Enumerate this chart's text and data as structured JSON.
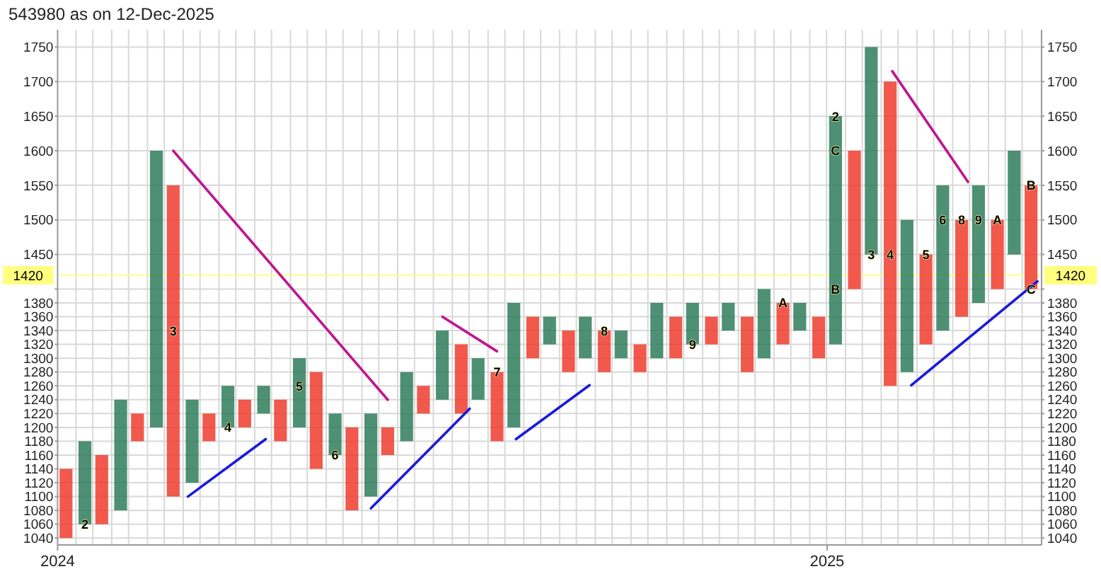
{
  "chart_data": {
    "type": "bar",
    "title": "543980 as on 12-Dec-2025",
    "xlim": [
      "2024-01-01",
      "2025-04-13"
    ],
    "xticks": [
      "2024",
      "2025"
    ],
    "ylim": [
      1030,
      1775
    ],
    "yticks": [
      1040,
      1060,
      1080,
      1100,
      1120,
      1140,
      1160,
      1180,
      1200,
      1220,
      1240,
      1260,
      1280,
      1300,
      1320,
      1340,
      1360,
      1380,
      {
        "value": 1400,
        "label": null
      },
      1450,
      1500,
      1550,
      1600,
      1650,
      1700,
      1750
    ],
    "y2lim": [
      1030,
      1775
    ],
    "y2ticks": [
      1040,
      1060,
      1080,
      1100,
      1120,
      1140,
      1160,
      1180,
      1200,
      1220,
      1240,
      1260,
      1280,
      1300,
      1320,
      1340,
      1360,
      1380,
      {
        "value": 1400,
        "label": null
      },
      1450,
      1500,
      1550,
      1600,
      1650,
      1700,
      1750
    ],
    "grid": true,
    "ref_lines": [
      {
        "axis": "y",
        "value": 1420,
        "label": "1420",
        "color": "#ffff80"
      }
    ],
    "series": [
      {
        "x": [
          "2024-01-05",
          "2024-01-14",
          "2024-01-22",
          "2024-01-31",
          "2024-02-08",
          "2024-02-17",
          "2024-02-25",
          "2024-03-05",
          "2024-03-13",
          "2024-03-22",
          "2024-03-30",
          "2024-04-08",
          "2024-04-16",
          "2024-04-25",
          "2024-05-03",
          "2024-05-12",
          "2024-05-20",
          "2024-05-29",
          "2024-06-06",
          "2024-06-15",
          "2024-06-23",
          "2024-07-02",
          "2024-07-11",
          "2024-07-19",
          "2024-07-28",
          "2024-08-05",
          "2024-08-14",
          "2024-08-22",
          "2024-08-31",
          "2024-09-08",
          "2024-09-17",
          "2024-09-25",
          "2024-10-04",
          "2024-10-12",
          "2024-10-21",
          "2024-10-29",
          "2024-11-07",
          "2024-11-15",
          "2024-11-24",
          "2024-12-02",
          "2024-12-11",
          "2024-12-19",
          "2024-12-28",
          "2025-01-05",
          "2025-01-14",
          "2025-01-22",
          "2025-01-31",
          "2025-02-08",
          "2025-02-17",
          "2025-02-25",
          "2025-03-06",
          "2025-03-14",
          "2025-03-23",
          "2025-03-31",
          "2025-04-08"
        ],
        "base": [
          1040,
          1060,
          1060,
          1080,
          1180,
          1200,
          1100,
          1120,
          1180,
          1200,
          1200,
          1220,
          1180,
          1200,
          1140,
          1160,
          1080,
          1100,
          1160,
          1180,
          1220,
          1240,
          1220,
          1240,
          1180,
          1200,
          1300,
          1320,
          1280,
          1300,
          1280,
          1300,
          1280,
          1300,
          1300,
          1320,
          1320,
          1340,
          1280,
          1300,
          1320,
          1340,
          1300,
          1320,
          1400,
          1450,
          1260,
          1280,
          1320,
          1340,
          1360,
          1380,
          1400,
          1450,
          1400
        ],
        "values": [
          100,
          120,
          100,
          160,
          40,
          400,
          450,
          120,
          40,
          60,
          40,
          40,
          60,
          100,
          140,
          60,
          120,
          120,
          40,
          100,
          40,
          100,
          100,
          60,
          100,
          180,
          60,
          40,
          60,
          60,
          60,
          40,
          40,
          80,
          60,
          60,
          40,
          40,
          80,
          100,
          60,
          40,
          60,
          330,
          200,
          300,
          440,
          220,
          130,
          210,
          140,
          170,
          100,
          150,
          150
        ],
        "colors": [
          "#f03c2e",
          "#2e7d5a",
          "#f03c2e",
          "#2e7d5a",
          "#f03c2e",
          "#2e7d5a",
          "#f03c2e",
          "#2e7d5a",
          "#f03c2e",
          "#2e7d5a",
          "#f03c2e",
          "#2e7d5a",
          "#f03c2e",
          "#2e7d5a",
          "#f03c2e",
          "#2e7d5a",
          "#f03c2e",
          "#2e7d5a",
          "#f03c2e",
          "#2e7d5a",
          "#f03c2e",
          "#2e7d5a",
          "#f03c2e",
          "#2e7d5a",
          "#f03c2e",
          "#2e7d5a",
          "#f03c2e",
          "#2e7d5a",
          "#f03c2e",
          "#2e7d5a",
          "#f03c2e",
          "#2e7d5a",
          "#f03c2e",
          "#2e7d5a",
          "#f03c2e",
          "#2e7d5a",
          "#f03c2e",
          "#2e7d5a",
          "#f03c2e",
          "#2e7d5a",
          "#f03c2e",
          "#2e7d5a",
          "#f03c2e",
          "#2e7d5a",
          "#f03c2e",
          "#2e7d5a",
          "#f03c2e",
          "#2e7d5a",
          "#f03c2e",
          "#2e7d5a",
          "#f03c2e",
          "#2e7d5a",
          "#f03c2e",
          "#2e7d5a",
          "#f03c2e"
        ]
      },
      {
        "type": "line",
        "color": "#c0158f",
        "x": [
          "2024-02-25",
          "2024-06-06"
        ],
        "values": [
          1600,
          1240
        ]
      },
      {
        "type": "line",
        "color": "#c0158f",
        "x": [
          "2024-07-02",
          "2024-07-28"
        ],
        "values": [
          1360,
          1310
        ]
      },
      {
        "type": "line",
        "color": "#c0158f",
        "x": [
          "2025-02-01",
          "2025-03-09"
        ],
        "values": [
          1715,
          1555
        ]
      },
      {
        "type": "line",
        "color": "#1a1adb",
        "x": [
          "2024-03-03",
          "2024-04-09"
        ],
        "values": [
          1100,
          1183
        ]
      },
      {
        "type": "line",
        "color": "#1a1adb",
        "x": [
          "2024-05-29",
          "2024-07-15"
        ],
        "values": [
          1083,
          1227
        ]
      },
      {
        "type": "line",
        "color": "#1a1adb",
        "x": [
          "2024-08-06",
          "2024-09-10"
        ],
        "values": [
          1183,
          1261
        ]
      },
      {
        "type": "line",
        "color": "#1a1adb",
        "x": [
          "2025-02-10",
          "2025-04-11"
        ],
        "values": [
          1261,
          1411
        ]
      }
    ],
    "annotations": [
      {
        "text": "2",
        "x": "2024-01-14",
        "y": 1060
      },
      {
        "text": "3",
        "x": "2024-02-25",
        "y": 1340
      },
      {
        "text": "4",
        "x": "2024-03-22",
        "y": 1200
      },
      {
        "text": "5",
        "x": "2024-04-25",
        "y": 1260
      },
      {
        "text": "6",
        "x": "2024-05-12",
        "y": 1160
      },
      {
        "text": "7",
        "x": "2024-07-28",
        "y": 1280
      },
      {
        "text": "8",
        "x": "2024-09-17",
        "y": 1340
      },
      {
        "text": "9",
        "x": "2024-10-29",
        "y": 1320
      },
      {
        "text": "A",
        "x": "2024-12-11",
        "y": 1380
      },
      {
        "text": "B",
        "x": "2025-01-05",
        "y": 1400
      },
      {
        "text": "C",
        "x": "2025-01-05",
        "y": 1600
      },
      {
        "text": "2",
        "x": "2025-01-05",
        "y": 1650
      },
      {
        "text": "3",
        "x": "2025-01-22",
        "y": 1450
      },
      {
        "text": "4",
        "x": "2025-01-31",
        "y": 1450
      },
      {
        "text": "5",
        "x": "2025-02-17",
        "y": 1450
      },
      {
        "text": "6",
        "x": "2025-02-25",
        "y": 1500
      },
      {
        "text": "8",
        "x": "2025-03-06",
        "y": 1500
      },
      {
        "text": "9",
        "x": "2025-03-14",
        "y": 1500
      },
      {
        "text": "A",
        "x": "2025-03-23",
        "y": 1500
      },
      {
        "text": "B",
        "x": "2025-04-08",
        "y": 1550
      },
      {
        "text": "C",
        "x": "2025-04-08",
        "y": 1400
      }
    ]
  }
}
